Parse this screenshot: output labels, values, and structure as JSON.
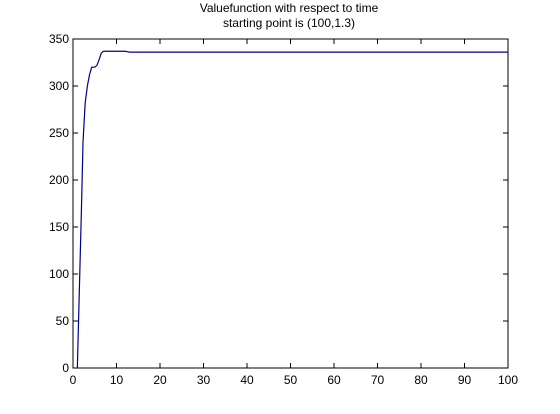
{
  "chart_data": {
    "type": "line",
    "title": "Valuefunction with respect to time",
    "subtitle": "starting point is (100,1.3)",
    "xlabel": "",
    "ylabel": "",
    "xlim": [
      0,
      100
    ],
    "ylim": [
      0,
      350
    ],
    "grid": false,
    "x_ticks": [
      "0",
      "10",
      "20",
      "30",
      "40",
      "50",
      "60",
      "70",
      "80",
      "90",
      "100"
    ],
    "y_ticks": [
      "0",
      "50",
      "100",
      "150",
      "200",
      "250",
      "300",
      "350"
    ],
    "series": [
      {
        "color": "#00008b",
        "x": [
          1,
          1.5,
          2,
          2.3,
          2.8,
          3.3,
          3.8,
          4.3,
          5,
          5.5,
          6,
          6.5,
          7,
          7.5,
          8,
          9,
          10,
          11,
          12,
          13,
          14,
          15,
          20,
          30,
          40,
          50,
          60,
          70,
          80,
          90,
          100
        ],
        "y": [
          0,
          90,
          180,
          240,
          282,
          300,
          312,
          320,
          320,
          322,
          328,
          335,
          337,
          337,
          337,
          337,
          337,
          337,
          337,
          336,
          336,
          336,
          336,
          336,
          336,
          336,
          336,
          336,
          336,
          336,
          336
        ]
      }
    ]
  },
  "colors": {
    "background": "#ffffff",
    "axes": "#000000",
    "line": "#00008b"
  }
}
